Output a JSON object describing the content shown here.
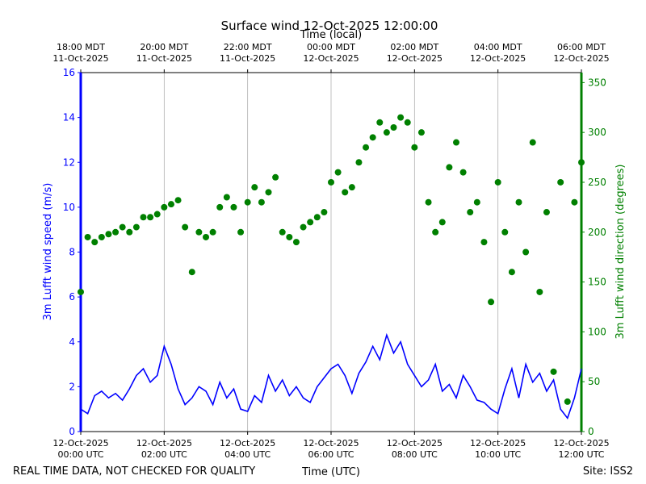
{
  "chart_data": {
    "type": "line",
    "title": "Surface wind 12-Oct-2025 12:00:00",
    "xlabel": "Time (UTC)",
    "x2label": "Time (local)",
    "ylabel": "3m Lufft wind speed (m/s)",
    "y2label": "3m Lufft wind direction (degrees)",
    "footer_left": "REAL TIME DATA, NOT CHECKED FOR QUALITY",
    "footer_right": "Site: ISS2",
    "grid": true,
    "xlim": [
      0,
      720
    ],
    "xticks": [
      {
        "value": 0,
        "label": [
          "12-Oct-2025",
          "00:00 UTC"
        ]
      },
      {
        "value": 120,
        "label": [
          "12-Oct-2025",
          "02:00 UTC"
        ]
      },
      {
        "value": 240,
        "label": [
          "12-Oct-2025",
          "04:00 UTC"
        ]
      },
      {
        "value": 360,
        "label": [
          "12-Oct-2025",
          "06:00 UTC"
        ]
      },
      {
        "value": 480,
        "label": [
          "12-Oct-2025",
          "08:00 UTC"
        ]
      },
      {
        "value": 600,
        "label": [
          "12-Oct-2025",
          "10:00 UTC"
        ]
      },
      {
        "value": 720,
        "label": [
          "12-Oct-2025",
          "12:00 UTC"
        ]
      }
    ],
    "x2ticks": [
      {
        "value": 0,
        "label": [
          "18:00 MDT",
          "11-Oct-2025"
        ]
      },
      {
        "value": 120,
        "label": [
          "20:00 MDT",
          "11-Oct-2025"
        ]
      },
      {
        "value": 240,
        "label": [
          "22:00 MDT",
          "11-Oct-2025"
        ]
      },
      {
        "value": 360,
        "label": [
          "00:00 MDT",
          "12-Oct-2025"
        ]
      },
      {
        "value": 480,
        "label": [
          "02:00 MDT",
          "12-Oct-2025"
        ]
      },
      {
        "value": 600,
        "label": [
          "04:00 MDT",
          "12-Oct-2025"
        ]
      },
      {
        "value": 720,
        "label": [
          "06:00 MDT",
          "12-Oct-2025"
        ]
      }
    ],
    "ylim": [
      0,
      16
    ],
    "yticks": [
      0,
      2,
      4,
      6,
      8,
      10,
      12,
      14,
      16
    ],
    "y2lim": [
      0,
      360
    ],
    "y2ticks": [
      0,
      50,
      100,
      150,
      200,
      250,
      300,
      350
    ],
    "x": [
      0,
      10,
      20,
      30,
      40,
      50,
      60,
      70,
      80,
      90,
      100,
      110,
      120,
      130,
      140,
      150,
      160,
      170,
      180,
      190,
      200,
      210,
      220,
      230,
      240,
      250,
      260,
      270,
      280,
      290,
      300,
      310,
      320,
      330,
      340,
      350,
      360,
      370,
      380,
      390,
      400,
      410,
      420,
      430,
      440,
      450,
      460,
      470,
      480,
      490,
      500,
      510,
      520,
      530,
      540,
      550,
      560,
      570,
      580,
      590,
      600,
      610,
      620,
      630,
      640,
      650,
      660,
      670,
      680,
      690,
      700,
      710,
      720
    ],
    "series": [
      {
        "name": "3m Lufft wind speed (m/s)",
        "type": "line",
        "color": "#0000ff",
        "values": [
          1.0,
          0.8,
          1.6,
          1.8,
          1.5,
          1.7,
          1.4,
          1.9,
          2.5,
          2.8,
          2.2,
          2.5,
          3.8,
          3.0,
          1.9,
          1.2,
          1.5,
          2.0,
          1.8,
          1.2,
          2.2,
          1.5,
          1.9,
          1.0,
          0.9,
          1.6,
          1.3,
          2.5,
          1.8,
          2.3,
          1.6,
          2.0,
          1.5,
          1.3,
          2.0,
          2.4,
          2.8,
          3.0,
          2.5,
          1.7,
          2.6,
          3.1,
          3.8,
          3.2,
          4.3,
          3.5,
          4.0,
          3.0,
          2.5,
          2.0,
          2.3,
          3.0,
          1.8,
          2.1,
          1.5,
          2.5,
          2.0,
          1.4,
          1.3,
          1.0,
          0.8,
          1.9,
          2.8,
          1.5,
          3.0,
          2.2,
          2.6,
          1.8,
          2.3,
          1.0,
          0.6,
          1.5,
          2.8
        ]
      },
      {
        "name": "3m Lufft wind direction (degrees)",
        "type": "scatter",
        "axis": "y2",
        "color": "#008000",
        "values": [
          140,
          195,
          190,
          195,
          198,
          200,
          205,
          200,
          205,
          215,
          215,
          218,
          225,
          228,
          232,
          205,
          160,
          200,
          195,
          200,
          225,
          235,
          225,
          200,
          230,
          245,
          230,
          240,
          255,
          200,
          195,
          190,
          205,
          210,
          215,
          220,
          250,
          260,
          240,
          245,
          270,
          285,
          295,
          310,
          300,
          305,
          315,
          310,
          285,
          300,
          230,
          200,
          210,
          265,
          290,
          260,
          220,
          230,
          190,
          130,
          250,
          200,
          160,
          230,
          180,
          290,
          140,
          220,
          60,
          250,
          30,
          230,
          270
        ]
      }
    ]
  }
}
